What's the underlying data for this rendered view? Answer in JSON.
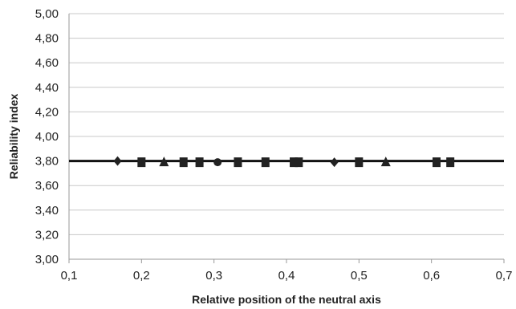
{
  "chart_data": {
    "type": "scatter",
    "title": "",
    "xlabel": "Relative position of the neutral axis",
    "ylabel": "Reliability index",
    "xlim": [
      0.1,
      0.7
    ],
    "ylim": [
      3.0,
      5.0
    ],
    "x_ticks": [
      "0,1",
      "0,2",
      "0,3",
      "0,4",
      "0,5",
      "0,6",
      "0,7"
    ],
    "y_ticks": [
      "3,00",
      "3,20",
      "3,40",
      "3,60",
      "3,80",
      "4,00",
      "4,20",
      "4,40",
      "4,60",
      "4,80",
      "5,00"
    ],
    "grid": "horizontal",
    "reference_line": {
      "y": 3.8
    },
    "points": [
      {
        "x": 0.167,
        "y": 3.8,
        "marker": "diamond"
      },
      {
        "x": 0.2,
        "y": 3.79,
        "marker": "square"
      },
      {
        "x": 0.231,
        "y": 3.79,
        "marker": "triangle"
      },
      {
        "x": 0.258,
        "y": 3.79,
        "marker": "square"
      },
      {
        "x": 0.28,
        "y": 3.79,
        "marker": "square"
      },
      {
        "x": 0.305,
        "y": 3.79,
        "marker": "circle"
      },
      {
        "x": 0.333,
        "y": 3.79,
        "marker": "square"
      },
      {
        "x": 0.371,
        "y": 3.79,
        "marker": "square"
      },
      {
        "x": 0.41,
        "y": 3.79,
        "marker": "square"
      },
      {
        "x": 0.417,
        "y": 3.79,
        "marker": "square"
      },
      {
        "x": 0.466,
        "y": 3.79,
        "marker": "diamond"
      },
      {
        "x": 0.5,
        "y": 3.79,
        "marker": "square"
      },
      {
        "x": 0.537,
        "y": 3.79,
        "marker": "triangle"
      },
      {
        "x": 0.607,
        "y": 3.79,
        "marker": "square"
      },
      {
        "x": 0.626,
        "y": 3.79,
        "marker": "square"
      }
    ],
    "colors": {
      "marker": "#222222",
      "line": "#111111",
      "grid": "#c8c8c8",
      "axis": "#9a9a9a"
    }
  }
}
